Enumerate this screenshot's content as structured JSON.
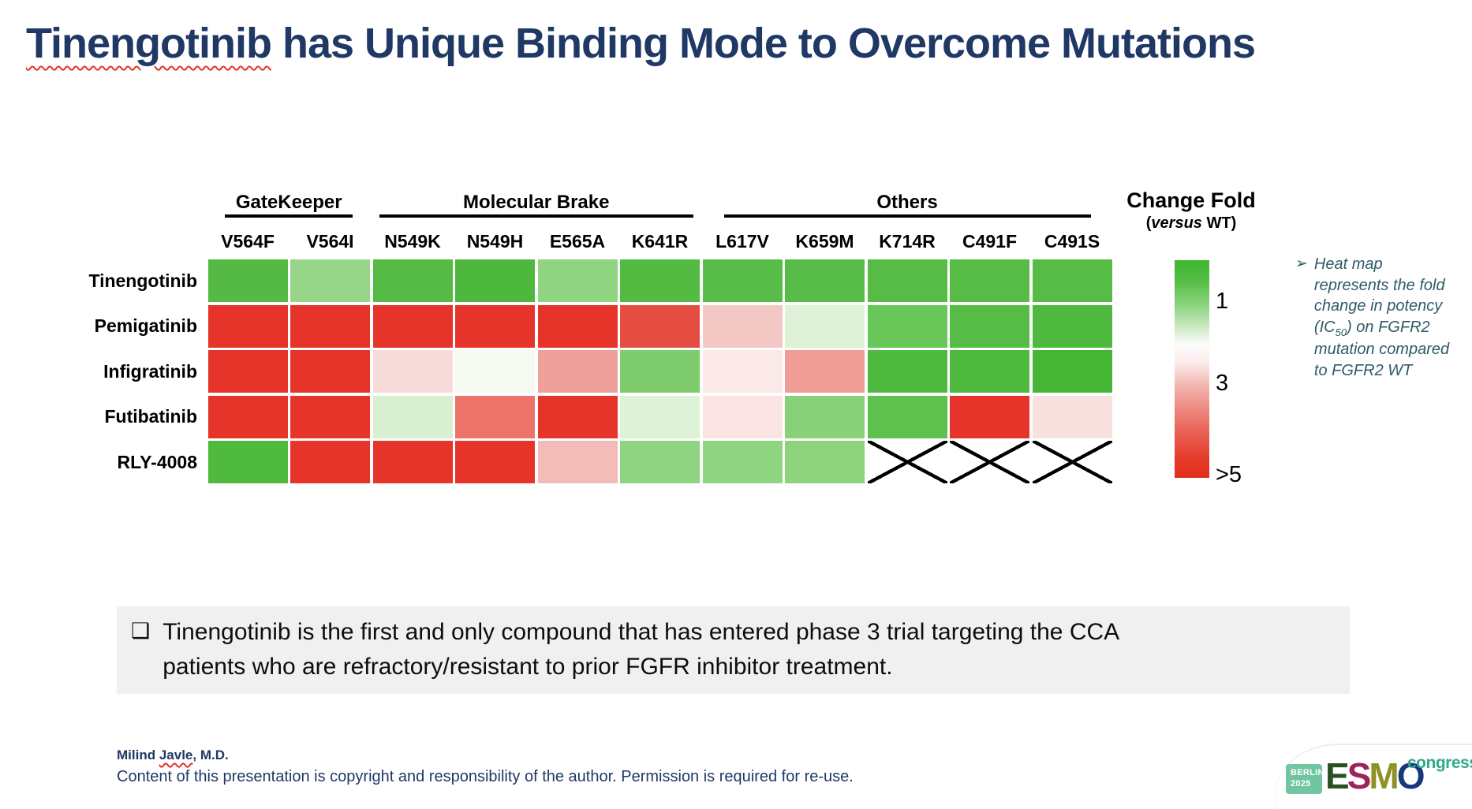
{
  "slide": {
    "title_highlight": "Tinengotinib",
    "title_rest": " has Unique Binding Mode to Overcome Mutations"
  },
  "chart_data": {
    "type": "heatmap",
    "columns": [
      "V564F",
      "V564I",
      "N549K",
      "N549H",
      "E565A",
      "K641R",
      "L617V",
      "K659M",
      "K714R",
      "C491F",
      "C491S"
    ],
    "column_groups": [
      {
        "label": "GateKeeper",
        "columns": [
          "V564F",
          "V564I"
        ]
      },
      {
        "label": "Molecular Brake",
        "columns": [
          "N549K",
          "N549H",
          "E565A",
          "K641R"
        ]
      },
      {
        "label": "Others",
        "columns": [
          "L617V",
          "K659M",
          "K714R",
          "C491F",
          "C491S"
        ]
      }
    ],
    "rows": [
      "Tinengotinib",
      "Pemigatinib",
      "Infigratinib",
      "Futibatinib",
      "RLY-4008"
    ],
    "estimated_fold_change": [
      [
        1,
        1.5,
        1,
        1,
        1.5,
        1,
        1,
        1,
        1,
        1,
        1
      ],
      [
        ">5",
        ">5",
        ">5",
        ">5",
        ">5",
        5,
        2.7,
        1.8,
        1.2,
        1,
        1
      ],
      [
        ">5",
        ">5",
        2.6,
        2,
        3.5,
        1.4,
        2.3,
        3.5,
        1,
        1,
        1
      ],
      [
        ">5",
        ">5",
        1.7,
        4,
        ">5",
        1.7,
        2.4,
        1.4,
        1.2,
        ">5",
        2.4
      ],
      [
        1,
        ">5",
        ">5",
        ">5",
        2.8,
        1.4,
        1.4,
        1.4,
        "x",
        "x",
        "x"
      ]
    ],
    "not_tested_marker": "x",
    "cell_colors_hex": [
      [
        "#54ba43",
        "#97d688",
        "#55bb45",
        "#4db83d",
        "#90d481",
        "#53ba42",
        "#58bd48",
        "#58bd48",
        "#56bc46",
        "#56bc46",
        "#56bc46"
      ],
      [
        "#e6342a",
        "#e6342a",
        "#e6342a",
        "#e6342a",
        "#e6342a",
        "#e64d42",
        "#f3c7c4",
        "#def2d8",
        "#69c658",
        "#57bc46",
        "#4fb93f"
      ],
      [
        "#e6342a",
        "#e6342a",
        "#f8dcdb",
        "#f6faf3",
        "#efa09a",
        "#7ecc6d",
        "#fbe9e8",
        "#ee9c94",
        "#50b940",
        "#50b940",
        "#47b637"
      ],
      [
        "#e6342a",
        "#e6342a",
        "#d9efd1",
        "#ed736a",
        "#e6342a",
        "#ddf2d7",
        "#fae4e3",
        "#88d178",
        "#5ec14e",
        "#e6342a",
        "#f9e1e0"
      ],
      [
        "#50ba3f",
        "#e6342a",
        "#e6342a",
        "#e6342a",
        "#f2bcb9",
        "#8fd480",
        "#8fd480",
        "#8cd37c",
        "x",
        "x",
        "x"
      ]
    ],
    "legend": {
      "title": "Change Fold",
      "sub_prefix": "(",
      "sub_italic": "versus",
      "sub_suffix": " WT)",
      "ticks": [
        "1",
        "3",
        ">5"
      ],
      "gradient_colors": [
        "#3cb62f",
        "#ffffff",
        "#e42d1b"
      ],
      "position": "right"
    },
    "grid": false
  },
  "note": {
    "marker": "➢",
    "part1": "Heat map represents the fold change in potency (IC",
    "sub": "50",
    "part2": ") on FGFR2 mutation compared to FGFR2 WT"
  },
  "callout": {
    "bullet": "❑",
    "line1": "Tinengotinib is the first and only compound that has entered phase 3 trial targeting the CCA",
    "line2": "patients who are refractory/resistant to prior FGFR inhibitor treatment."
  },
  "footer": {
    "name_pre": "Milind ",
    "name_wavy": "Javle",
    "name_post": ", M.D.",
    "copyright": "Content of this presentation is copyright and responsibility of the author. Permission is required for re-use."
  },
  "logo": {
    "city": "BERLIN",
    "year": "2025",
    "badge_color": "#70c6a1",
    "esmo_letters": [
      {
        "ch": "E",
        "color": "#2a511f"
      },
      {
        "ch": "S",
        "color": "#9c2459"
      },
      {
        "ch": "M",
        "color": "#8e9126"
      },
      {
        "ch": "O",
        "color": "#17387b"
      }
    ],
    "congress": "congress",
    "congress_color": "#32a98a"
  },
  "colors": {
    "title_navy": "#1f3864",
    "note_teal": "#2d5b66",
    "squiggle_red": "#df352a",
    "callout_bg": "#f0f0f0",
    "heat_green": "#55bb45",
    "heat_red": "#e6342a"
  }
}
